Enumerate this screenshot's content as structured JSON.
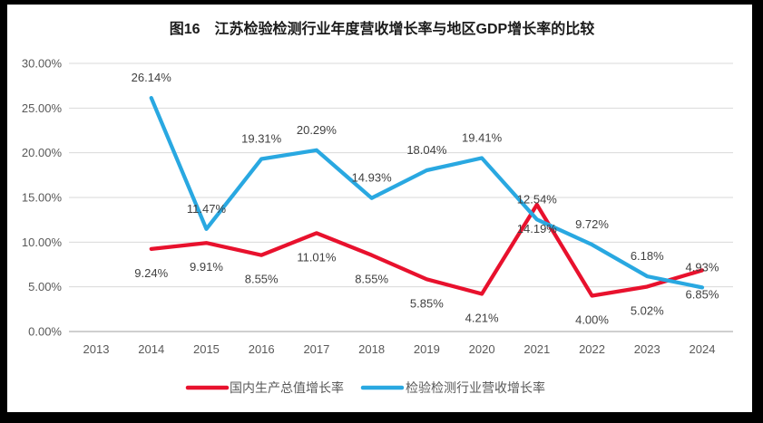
{
  "title": "图16　江苏检验检测行业年度营收增长率与地区GDP增长率的比较",
  "colors": {
    "gdp_line": "#e8112d",
    "industry_line": "#29a8e1",
    "gridline": "#d9d9d9",
    "axis_line": "#bfbfbf",
    "axis_text": "#595959",
    "data_label_text": "#3f3f3f",
    "title_text": "#1a1a1a",
    "legend_text": "#595959",
    "card_background": "#ffffff",
    "frame": "#000000"
  },
  "chart_data": {
    "type": "line",
    "title": "图16　江苏检验检测行业年度营收增长率与地区GDP增长率的比较",
    "xlabel": "",
    "ylabel": "",
    "ylim": [
      0,
      30
    ],
    "y_tick_step": 5,
    "grid": true,
    "legend_position": "bottom",
    "categories": [
      "2013",
      "2014",
      "2015",
      "2016",
      "2017",
      "2018",
      "2019",
      "2020",
      "2021",
      "2022",
      "2023",
      "2024"
    ],
    "y_ticks": [
      "30.00%",
      "25.00%",
      "20.00%",
      "15.00%",
      "10.00%",
      "5.00%",
      "0.00%"
    ],
    "series": [
      {
        "name": "国内生产总值增长率",
        "color_key": "gdp_line",
        "label_position": "below",
        "values": [
          null,
          9.24,
          9.91,
          8.55,
          11.01,
          8.55,
          5.85,
          4.21,
          14.19,
          4.0,
          5.02,
          6.85
        ],
        "labels": [
          null,
          "9.24%",
          "9.91%",
          "8.55%",
          "11.01%",
          "8.55%",
          "5.85%",
          "4.21%",
          "14.19%",
          "4.00%",
          "5.02%",
          "6.85%"
        ]
      },
      {
        "name": "检验检测行业营收增长率",
        "color_key": "industry_line",
        "label_position": "above",
        "values": [
          null,
          26.14,
          11.47,
          19.31,
          20.29,
          14.93,
          18.04,
          19.41,
          12.54,
          9.72,
          6.18,
          4.93
        ],
        "labels": [
          null,
          "26.14%",
          "11.47%",
          "19.31%",
          "20.29%",
          "14.93%",
          "18.04%",
          "19.41%",
          "12.54%",
          "9.72%",
          "6.18%",
          "4.93%"
        ]
      }
    ]
  }
}
